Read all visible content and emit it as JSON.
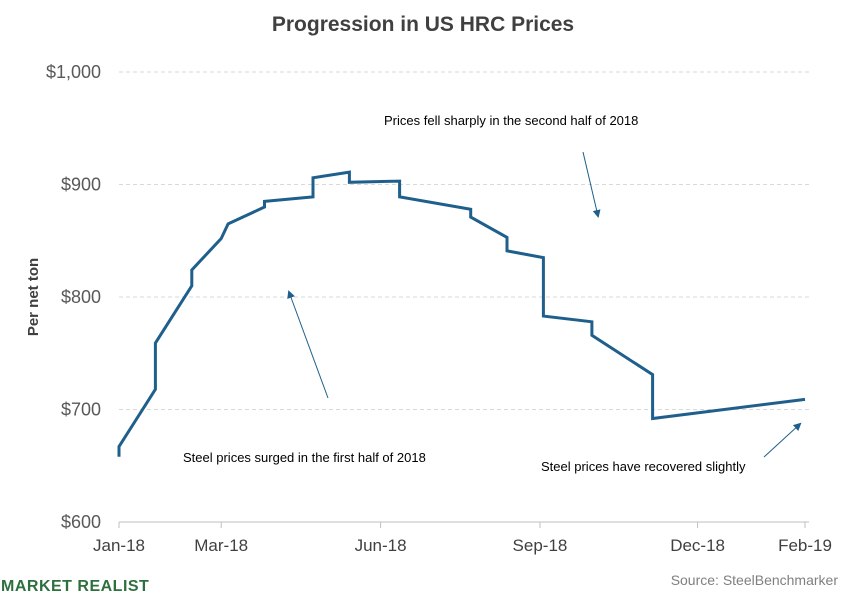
{
  "chart_data": {
    "type": "line",
    "title": "Progression  in US HRC Prices",
    "ylabel": "Per net ton",
    "xlabel": "",
    "ylim": [
      600,
      1000
    ],
    "yticks": [
      "$600",
      "$700",
      "$800",
      "$900",
      "$1,000"
    ],
    "ytick_values": [
      600,
      700,
      800,
      900,
      1000
    ],
    "xticks": [
      "Jan-18",
      "Mar-18",
      "Jun-18",
      "Sep-18",
      "Dec-18",
      "Feb-19"
    ],
    "xtick_dates": [
      "2018-01-01",
      "2018-03-01",
      "2018-06-01",
      "2018-09-01",
      "2018-12-01",
      "2019-02-01"
    ],
    "grid": "horizontal dashed",
    "series": [
      {
        "color": "#1f5f8b",
        "points": [
          [
            "2018-01-01",
            658
          ],
          [
            "2018-01-01",
            667
          ],
          [
            "2018-01-22",
            718
          ],
          [
            "2018-01-22",
            759
          ],
          [
            "2018-02-12",
            810
          ],
          [
            "2018-02-12",
            824
          ],
          [
            "2018-03-01",
            852
          ],
          [
            "2018-03-05",
            865
          ],
          [
            "2018-03-26",
            880
          ],
          [
            "2018-03-26",
            885
          ],
          [
            "2018-04-23",
            889
          ],
          [
            "2018-04-23",
            906
          ],
          [
            "2018-05-14",
            911
          ],
          [
            "2018-05-14",
            902
          ],
          [
            "2018-06-12",
            903
          ],
          [
            "2018-06-12",
            889
          ],
          [
            "2018-07-23",
            878
          ],
          [
            "2018-07-23",
            871
          ],
          [
            "2018-08-13",
            853
          ],
          [
            "2018-08-13",
            841
          ],
          [
            "2018-09-03",
            835
          ],
          [
            "2018-09-03",
            783
          ],
          [
            "2018-10-01",
            778
          ],
          [
            "2018-10-01",
            766
          ],
          [
            "2018-11-05",
            731
          ],
          [
            "2018-11-05",
            692
          ],
          [
            "2019-02-01",
            709
          ]
        ]
      }
    ],
    "annotations": [
      {
        "text": "Prices fell sharply in the second half of 2018"
      },
      {
        "text": "Steel prices surged in the first half of 2018"
      },
      {
        "text": "Steel prices have  recovered  slightly"
      }
    ],
    "source": "Source:  SteelBenchmarker"
  },
  "brand": {
    "text": "MARKET REALIST",
    "color": "#2e6f3e"
  }
}
